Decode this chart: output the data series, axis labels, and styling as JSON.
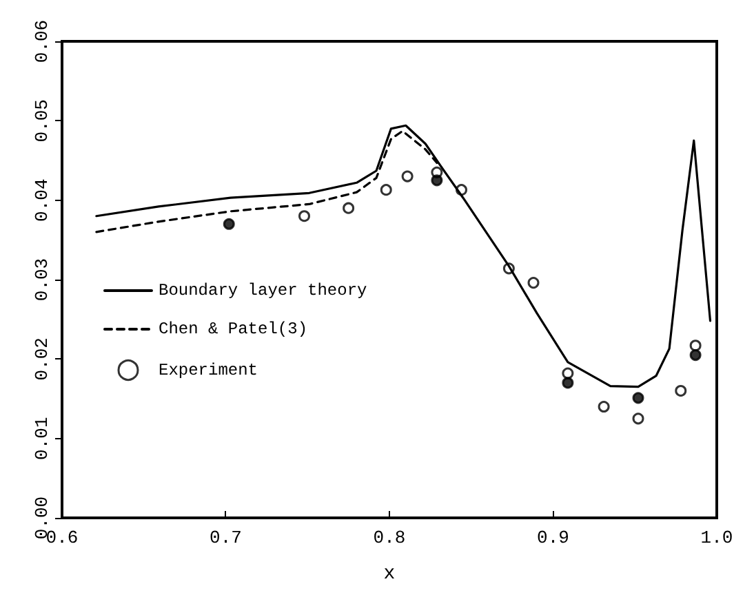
{
  "chart_data": {
    "type": "line",
    "xlabel": "x",
    "xlim": [
      0.6,
      1.0
    ],
    "xticks": [
      {
        "value": 0.6,
        "label": "0.6"
      },
      {
        "value": 0.7,
        "label": "0.7"
      },
      {
        "value": 0.8,
        "label": "0.8"
      },
      {
        "value": 0.9,
        "label": "0.9"
      },
      {
        "value": 1.0,
        "label": "1.0"
      }
    ],
    "ylim": [
      0,
      0.06
    ],
    "yticks": [
      {
        "value": 0,
        "label": "0.00"
      },
      {
        "value": 0.01,
        "label": "0.01"
      },
      {
        "value": 0.02,
        "label": "0.02"
      },
      {
        "value": 0.03,
        "label": "0.03"
      },
      {
        "value": 0.04,
        "label": "0.04"
      },
      {
        "value": 0.05,
        "label": "0.05"
      },
      {
        "value": 0.06,
        "label": "0.06"
      }
    ],
    "grid": false,
    "legend": "left",
    "marker": "none",
    "series": [
      {
        "name": "Boundary layer theory",
        "type": "line",
        "color": "#000000",
        "line_style": "solid",
        "x": [
          0.621,
          0.659,
          0.703,
          0.751,
          0.78,
          0.792,
          0.801,
          0.81,
          0.822,
          0.831,
          0.845,
          0.873,
          0.89,
          0.909,
          0.935,
          0.952,
          0.963,
          0.971,
          0.979,
          0.986,
          0.996
        ],
        "values": [
          0.038,
          0.0392,
          0.0403,
          0.0409,
          0.0422,
          0.0437,
          0.049,
          0.0494,
          0.0471,
          0.0444,
          0.0403,
          0.0317,
          0.0258,
          0.0196,
          0.0166,
          0.0165,
          0.0179,
          0.0213,
          0.0362,
          0.0475,
          0.0248
        ]
      },
      {
        "name": "Chen & Patel(3)",
        "type": "line",
        "color": "#000000",
        "line_style": "dashed",
        "x": [
          0.621,
          0.659,
          0.703,
          0.751,
          0.78,
          0.792,
          0.801,
          0.808,
          0.822,
          0.829
        ],
        "values": [
          0.036,
          0.0373,
          0.0386,
          0.0395,
          0.041,
          0.0428,
          0.0477,
          0.0487,
          0.0464,
          0.0447
        ]
      },
      {
        "name": "Experiment",
        "type": "scatter",
        "color": "#000000",
        "marker": "circle",
        "x": [
          0.748,
          0.775,
          0.798,
          0.811,
          0.829,
          0.844,
          0.873,
          0.888,
          0.909,
          0.931,
          0.952,
          0.978,
          0.987
        ],
        "values": [
          0.038,
          0.039,
          0.0413,
          0.043,
          0.0435,
          0.0413,
          0.0314,
          0.0296,
          0.0182,
          0.014,
          0.0125,
          0.016,
          0.0217
        ]
      },
      {
        "type": "scatter",
        "color": "#000000",
        "marker": "circle",
        "x": [
          0.702,
          0.829,
          0.909,
          0.952,
          0.987
        ],
        "values": [
          0.037,
          0.0425,
          0.017,
          0.0151,
          0.0205
        ]
      }
    ]
  }
}
